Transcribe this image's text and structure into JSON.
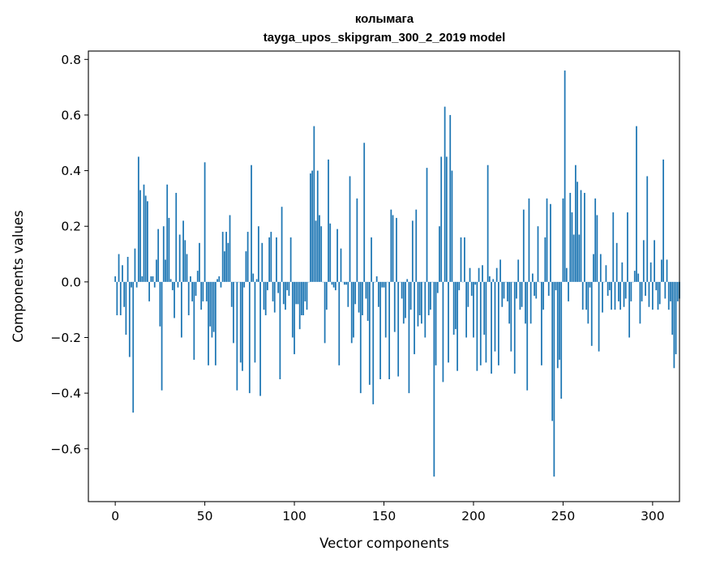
{
  "chart_data": {
    "type": "bar",
    "title": "колымага",
    "subtitle": "tayga_upos_skipgram_300_2_2019 model",
    "xlabel": "Vector components",
    "ylabel": "Components values",
    "xlim": [
      -15,
      315
    ],
    "ylim": [
      -0.79,
      0.83
    ],
    "xticks": [
      0,
      50,
      100,
      150,
      200,
      250,
      300
    ],
    "yticks": [
      -0.6,
      -0.4,
      -0.2,
      0.0,
      0.2,
      0.4,
      0.6,
      0.8
    ],
    "xtick_labels": [
      "0",
      "50",
      "100",
      "150",
      "200",
      "250",
      "300"
    ],
    "ytick_labels": [
      "−0.6",
      "−0.4",
      "−0.2",
      "0.0",
      "0.2",
      "0.4",
      "0.6",
      "0.8"
    ],
    "grid": false,
    "bar_color": "#1f77b4",
    "series": [
      {
        "values": [
          0.02,
          -0.12,
          0.1,
          -0.12,
          0.06,
          -0.09,
          -0.19,
          0.09,
          -0.27,
          -0.02,
          -0.47,
          0.12,
          -0.02,
          0.45,
          0.33,
          0.02,
          0.35,
          0.31,
          0.29,
          -0.07,
          0.02,
          0.02,
          -0.02,
          0.08,
          0.19,
          -0.16,
          -0.39,
          0.2,
          0.08,
          0.35,
          0.23,
          0.01,
          -0.03,
          -0.13,
          0.32,
          -0.02,
          0.17,
          -0.2,
          0.22,
          0.15,
          0.1,
          -0.12,
          0.02,
          -0.07,
          -0.28,
          -0.05,
          0.04,
          0.14,
          -0.1,
          -0.07,
          0.43,
          -0.07,
          -0.3,
          -0.16,
          -0.2,
          -0.18,
          -0.3,
          0.01,
          0.02,
          -0.02,
          0.18,
          0.11,
          0.18,
          0.14,
          0.24,
          -0.09,
          -0.22,
          0.0,
          -0.39,
          0.0,
          -0.29,
          -0.32,
          -0.02,
          0.11,
          0.18,
          -0.4,
          0.42,
          0.03,
          -0.29,
          0.01,
          0.2,
          -0.41,
          0.14,
          -0.1,
          -0.12,
          -0.03,
          0.16,
          0.18,
          -0.07,
          -0.11,
          0.16,
          -0.04,
          -0.35,
          0.27,
          -0.08,
          -0.1,
          -0.03,
          -0.05,
          0.16,
          -0.2,
          -0.26,
          -0.08,
          -0.08,
          -0.17,
          -0.12,
          -0.12,
          -0.07,
          -0.1,
          0.0,
          0.39,
          0.4,
          0.56,
          0.22,
          0.4,
          0.24,
          0.2,
          0.0,
          -0.22,
          -0.1,
          0.44,
          0.21,
          -0.01,
          -0.02,
          -0.03,
          0.19,
          -0.3,
          0.12,
          0.0,
          -0.01,
          -0.01,
          -0.09,
          0.38,
          -0.22,
          -0.2,
          -0.08,
          0.3,
          -0.11,
          -0.4,
          -0.12,
          0.5,
          -0.06,
          -0.14,
          -0.37,
          0.16,
          -0.44,
          0.0,
          0.02,
          -0.09,
          -0.35,
          -0.02,
          -0.02,
          -0.2,
          0.0,
          -0.35,
          0.26,
          0.24,
          -0.18,
          0.23,
          -0.34,
          0.0,
          -0.06,
          -0.15,
          -0.13,
          0.01,
          -0.4,
          -0.1,
          0.22,
          -0.26,
          0.26,
          -0.16,
          -0.12,
          -0.15,
          0.0,
          -0.2,
          0.41,
          -0.12,
          -0.1,
          0.0,
          -0.7,
          -0.3,
          -0.04,
          0.2,
          0.45,
          -0.36,
          0.63,
          0.45,
          -0.29,
          0.6,
          0.4,
          -0.19,
          -0.17,
          -0.32,
          -0.03,
          0.16,
          0.0,
          0.16,
          -0.2,
          -0.09,
          0.05,
          -0.05,
          -0.2,
          -0.01,
          -0.32,
          0.05,
          -0.3,
          0.06,
          -0.19,
          -0.29,
          0.42,
          0.02,
          -0.33,
          0.01,
          -0.25,
          0.05,
          -0.3,
          0.08,
          -0.09,
          -0.06,
          0.0,
          -0.07,
          -0.15,
          -0.25,
          0.0,
          -0.33,
          -0.06,
          0.08,
          -0.1,
          -0.09,
          0.26,
          -0.15,
          -0.39,
          0.3,
          -0.15,
          0.03,
          -0.05,
          -0.06,
          0.2,
          0.0,
          -0.3,
          -0.1,
          0.16,
          0.3,
          -0.05,
          0.28,
          -0.5,
          -0.7,
          -0.03,
          -0.31,
          -0.28,
          -0.42,
          0.3,
          0.76,
          0.05,
          -0.07,
          0.32,
          0.25,
          0.17,
          0.42,
          0.36,
          0.17,
          0.33,
          -0.1,
          0.32,
          -0.1,
          -0.15,
          -0.02,
          -0.23,
          0.1,
          0.3,
          0.24,
          -0.25,
          0.1,
          -0.11,
          0.0,
          0.06,
          -0.05,
          -0.03,
          -0.1,
          0.25,
          -0.1,
          0.14,
          -0.07,
          -0.1,
          0.07,
          -0.09,
          -0.06,
          0.25,
          -0.2,
          -0.07,
          0.0,
          0.04,
          0.56,
          0.03,
          -0.15,
          -0.07,
          0.15,
          -0.05,
          0.38,
          -0.09,
          0.07,
          -0.1,
          0.15,
          -0.03,
          -0.1,
          -0.08,
          0.08,
          0.44,
          -0.06,
          0.08,
          -0.1,
          -0.07,
          -0.19,
          -0.31,
          -0.26,
          -0.07,
          -0.06
        ]
      }
    ]
  }
}
